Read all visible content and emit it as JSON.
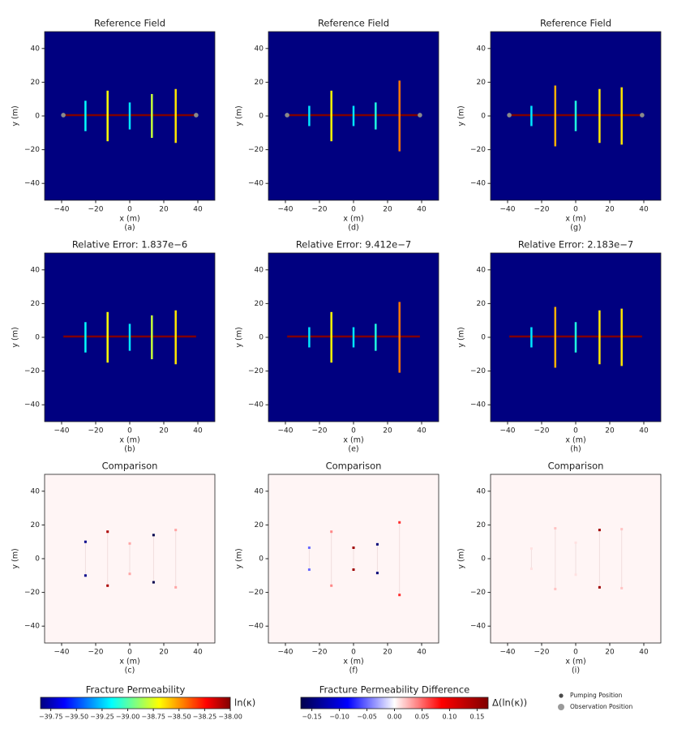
{
  "chart_data": [
    {
      "type": "fracture-map",
      "title": "Reference Field",
      "xlabel": "x (m)",
      "ylabel": "y (m)",
      "caption": "(a)",
      "xlim": [
        -50,
        50
      ],
      "ylim": [
        -50,
        50
      ],
      "xticks": [
        {
          "value": -40,
          "label": "−40"
        },
        {
          "value": -20,
          "label": "−20"
        },
        0,
        20,
        40
      ],
      "yticks": [
        {
          "value": -40,
          "label": "−40"
        },
        {
          "value": -20,
          "label": "−20"
        },
        0,
        20,
        40
      ],
      "fractures": {
        "x": [
          -26,
          -13,
          0,
          13,
          27
        ],
        "half_length": [
          9,
          15,
          8,
          13,
          16
        ],
        "log_perm": [
          -39.15,
          -38.7,
          -39.2,
          -38.8,
          -38.65
        ]
      },
      "main": {
        "x": [
          -39,
          39
        ],
        "y": 0.5,
        "log_perm": -38.0
      },
      "points": {
        "x": [
          -39,
          39
        ],
        "y": [
          0.5,
          0.5
        ]
      }
    },
    {
      "type": "fracture-map",
      "title": "Reference Field",
      "xlabel": "x (m)",
      "ylabel": "y (m)",
      "caption": "(d)",
      "xlim": [
        -50,
        50
      ],
      "ylim": [
        -50,
        50
      ],
      "xticks": [
        {
          "value": -40,
          "label": "−40"
        },
        {
          "value": -20,
          "label": "−20"
        },
        0,
        20,
        40
      ],
      "yticks": [
        {
          "value": -40,
          "label": "−40"
        },
        {
          "value": -20,
          "label": "−20"
        },
        0,
        20,
        40
      ],
      "fractures": {
        "x": [
          -26,
          -13,
          0,
          13,
          27
        ],
        "half_length": [
          6,
          15,
          6,
          8,
          21
        ],
        "log_perm": [
          -39.2,
          -38.7,
          -39.2,
          -39.1,
          -38.45
        ]
      },
      "main": {
        "x": [
          -39,
          39
        ],
        "y": 0.5,
        "log_perm": -38.0
      },
      "points": {
        "x": [
          -39,
          39
        ],
        "y": [
          0.5,
          0.5
        ]
      }
    },
    {
      "type": "fracture-map",
      "title": "Reference Field",
      "xlabel": "x (m)",
      "ylabel": "y (m)",
      "caption": "(g)",
      "xlim": [
        -50,
        50
      ],
      "ylim": [
        -50,
        50
      ],
      "xticks": [
        {
          "value": -40,
          "label": "−40"
        },
        {
          "value": -20,
          "label": "−20"
        },
        0,
        20,
        40
      ],
      "yticks": [
        {
          "value": -40,
          "label": "−40"
        },
        {
          "value": -20,
          "label": "−20"
        },
        0,
        20,
        40
      ],
      "fractures": {
        "x": [
          -26,
          -12,
          0,
          14,
          27
        ],
        "half_length": [
          6,
          18,
          9,
          16,
          17
        ],
        "log_perm": [
          -39.2,
          -38.55,
          -39.1,
          -38.65,
          -38.65
        ]
      },
      "main": {
        "x": [
          -39,
          39
        ],
        "y": 0.5,
        "log_perm": -38.0
      },
      "points": {
        "x": [
          -39,
          39
        ],
        "y": [
          0.5,
          0.5
        ]
      }
    },
    {
      "type": "fracture-map",
      "title": "Relative Error: 1.837e−6",
      "xlabel": "x (m)",
      "ylabel": "y (m)",
      "caption": "(b)",
      "xlim": [
        -50,
        50
      ],
      "ylim": [
        -50,
        50
      ],
      "xticks": [
        {
          "value": -40,
          "label": "−40"
        },
        {
          "value": -20,
          "label": "−20"
        },
        0,
        20,
        40
      ],
      "yticks": [
        {
          "value": -40,
          "label": "−40"
        },
        {
          "value": -20,
          "label": "−20"
        },
        0,
        20,
        40
      ],
      "fractures": {
        "x": [
          -26,
          -13,
          0,
          13,
          27
        ],
        "half_length": [
          9,
          15,
          8,
          13,
          16
        ],
        "log_perm": [
          -39.15,
          -38.7,
          -39.2,
          -38.8,
          -38.65
        ]
      },
      "main": {
        "x": [
          -39,
          39
        ],
        "y": 0.5,
        "log_perm": -38.0
      }
    },
    {
      "type": "fracture-map",
      "title": "Relative Error: 9.412e−7",
      "xlabel": "x (m)",
      "ylabel": "y (m)",
      "caption": "(e)",
      "xlim": [
        -50,
        50
      ],
      "ylim": [
        -50,
        50
      ],
      "xticks": [
        {
          "value": -40,
          "label": "−40"
        },
        {
          "value": -20,
          "label": "−20"
        },
        0,
        20,
        40
      ],
      "yticks": [
        {
          "value": -40,
          "label": "−40"
        },
        {
          "value": -20,
          "label": "−20"
        },
        0,
        20,
        40
      ],
      "fractures": {
        "x": [
          -26,
          -13,
          0,
          13,
          27
        ],
        "half_length": [
          6,
          15,
          6,
          8,
          21
        ],
        "log_perm": [
          -39.2,
          -38.7,
          -39.2,
          -39.1,
          -38.45
        ]
      },
      "main": {
        "x": [
          -39,
          39
        ],
        "y": 0.5,
        "log_perm": -38.0
      }
    },
    {
      "type": "fracture-map",
      "title": "Relative Error: 2.183e−7",
      "xlabel": "x (m)",
      "ylabel": "y (m)",
      "caption": "(h)",
      "xlim": [
        -50,
        50
      ],
      "ylim": [
        -50,
        50
      ],
      "xticks": [
        {
          "value": -40,
          "label": "−40"
        },
        {
          "value": -20,
          "label": "−20"
        },
        0,
        20,
        40
      ],
      "yticks": [
        {
          "value": -40,
          "label": "−40"
        },
        {
          "value": -20,
          "label": "−20"
        },
        0,
        20,
        40
      ],
      "fractures": {
        "x": [
          -26,
          -12,
          0,
          14,
          27
        ],
        "half_length": [
          6,
          18,
          9,
          16,
          17
        ],
        "log_perm": [
          -39.2,
          -38.55,
          -39.1,
          -38.65,
          -38.65
        ]
      },
      "main": {
        "x": [
          -39,
          39
        ],
        "y": 0.5,
        "log_perm": -38.0
      }
    },
    {
      "type": "comparison",
      "title": "Comparison",
      "xlabel": "x (m)",
      "ylabel": "y (m)",
      "caption": "(c)",
      "xlim": [
        -50,
        50
      ],
      "ylim": [
        -50,
        50
      ],
      "xticks": [
        {
          "value": -40,
          "label": "−40"
        },
        {
          "value": -20,
          "label": "−20"
        },
        0,
        20,
        40
      ],
      "yticks": [
        {
          "value": -40,
          "label": "−40"
        },
        {
          "value": -20,
          "label": "−20"
        },
        0,
        20,
        40
      ],
      "fractures": {
        "x": [
          -26,
          -13,
          0,
          14,
          27
        ],
        "half_length": [
          10,
          16,
          9,
          14,
          17
        ],
        "diff": [
          -0.14,
          0.14,
          0.03,
          -0.17,
          0.03
        ]
      }
    },
    {
      "type": "comparison",
      "title": "Comparison",
      "xlabel": "x (m)",
      "ylabel": "y (m)",
      "caption": "(f)",
      "xlim": [
        -50,
        50
      ],
      "ylim": [
        -50,
        50
      ],
      "xticks": [
        {
          "value": -40,
          "label": "−40"
        },
        {
          "value": -20,
          "label": "−20"
        },
        0,
        20,
        40
      ],
      "yticks": [
        {
          "value": -40,
          "label": "−40"
        },
        {
          "value": -20,
          "label": "−20"
        },
        0,
        20,
        40
      ],
      "fractures": {
        "x": [
          -26,
          -13,
          0,
          14,
          27
        ],
        "half_length": [
          6.5,
          16,
          6.5,
          8.5,
          21.5
        ],
        "diff": [
          -0.05,
          0.04,
          0.15,
          -0.15,
          0.07
        ]
      }
    },
    {
      "type": "comparison",
      "title": "Comparison",
      "xlabel": "x (m)",
      "ylabel": "y (m)",
      "caption": "(i)",
      "xlim": [
        -50,
        50
      ],
      "ylim": [
        -50,
        50
      ],
      "xticks": [
        {
          "value": -40,
          "label": "−40"
        },
        {
          "value": -20,
          "label": "−20"
        },
        0,
        20,
        40
      ],
      "yticks": [
        {
          "value": -40,
          "label": "−40"
        },
        {
          "value": -20,
          "label": "−20"
        },
        0,
        20,
        40
      ],
      "fractures": {
        "x": [
          -26,
          -12,
          0,
          14,
          27
        ],
        "half_length": [
          6,
          18,
          9.5,
          17,
          17.5
        ],
        "diff": [
          0.01,
          0.02,
          0.01,
          0.15,
          0.02
        ]
      }
    }
  ],
  "colorbars": [
    {
      "title": "Fracture Permeability",
      "label": "ln(κ)",
      "cmap": "jet",
      "clim": [
        -39.85,
        -38.0
      ],
      "ticks": [
        {
          "value": -39.75,
          "label": "−39.75"
        },
        {
          "value": -39.5,
          "label": "−39.50"
        },
        {
          "value": -39.25,
          "label": "−39.25"
        },
        {
          "value": -39.0,
          "label": "−39.00"
        },
        {
          "value": -38.75,
          "label": "−38.75"
        },
        {
          "value": -38.5,
          "label": "−38.50"
        },
        {
          "value": -38.25,
          "label": "−38.25"
        },
        {
          "value": -38.0,
          "label": "−38.00"
        }
      ]
    },
    {
      "title": "Fracture Permeability Difference",
      "label": "Δ(ln(κ))",
      "cmap": "seismic",
      "clim": [
        -0.17,
        0.17
      ],
      "ticks": [
        {
          "value": -0.15,
          "label": "−0.15"
        },
        {
          "value": -0.1,
          "label": "−0.10"
        },
        {
          "value": -0.05,
          "label": "−0.05"
        },
        {
          "value": 0,
          "label": "0.00"
        },
        0.05,
        {
          "value": 0.1,
          "label": "0.10"
        },
        0.15
      ]
    }
  ],
  "legend": {
    "items": [
      {
        "name": "Pumping Position",
        "color": "#4a4a4a"
      },
      {
        "name": "Observation Position",
        "color": "#9a9a9a"
      }
    ]
  }
}
